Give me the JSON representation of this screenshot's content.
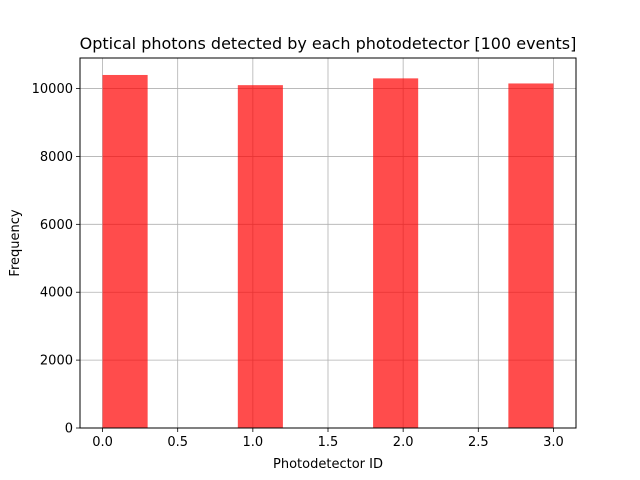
{
  "chart_data": {
    "type": "bar",
    "title": "Optical photons detected by each photodetector [100 events]",
    "xlabel": "Photodetector ID",
    "ylabel": "Frequency",
    "xlim": [
      -0.15,
      3.15
    ],
    "ylim": [
      0,
      10900
    ],
    "x_ticks": [
      0.0,
      0.5,
      1.0,
      1.5,
      2.0,
      2.5,
      3.0
    ],
    "x_tick_labels": [
      "0.0",
      "0.5",
      "1.0",
      "1.5",
      "2.0",
      "2.5",
      "3.0"
    ],
    "y_ticks": [
      0,
      2000,
      4000,
      6000,
      8000,
      10000
    ],
    "y_tick_labels": [
      "0",
      "2000",
      "4000",
      "6000",
      "8000",
      "10000"
    ],
    "bin_edges": [
      0.0,
      0.3,
      0.6,
      0.9,
      1.2,
      1.5,
      1.8,
      2.1,
      2.4,
      2.7,
      3.0
    ],
    "values": [
      10400,
      0,
      0,
      10100,
      0,
      0,
      10300,
      0,
      0,
      10150
    ],
    "grid": true,
    "legend": false,
    "colors": {
      "bar": "#ff0000",
      "bar_opacity": 0.7,
      "grid": "#b0b0b0",
      "axes": "#000000"
    }
  }
}
